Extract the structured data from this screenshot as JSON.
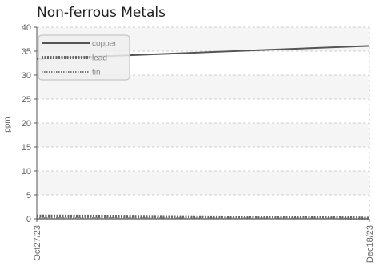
{
  "chart_data": {
    "type": "line",
    "title": "Non-ferrous Metals",
    "xlabel": "",
    "ylabel": "ppm",
    "x": [
      "Oct27/23",
      "Dec18/23"
    ],
    "xlim": [
      0,
      52
    ],
    "ylim": [
      0,
      40
    ],
    "yticks": [
      0,
      5,
      10,
      15,
      20,
      25,
      30,
      35,
      40
    ],
    "grid": true,
    "legend_position": "top-left",
    "series": [
      {
        "name": "copper",
        "style": "solid",
        "points": [
          [
            0,
            33.4
          ],
          [
            52,
            36.1
          ]
        ]
      },
      {
        "name": "lead",
        "style": "dotted-thick",
        "points": [
          [
            0,
            0.55
          ],
          [
            12,
            0.5
          ],
          [
            28,
            0.35
          ],
          [
            46,
            0.25
          ],
          [
            52,
            0.1
          ]
        ]
      },
      {
        "name": "tin",
        "style": "dotted-thin",
        "points": [
          [
            0,
            0.15
          ],
          [
            20,
            0.1
          ],
          [
            52,
            0.05
          ]
        ]
      }
    ],
    "colors": {
      "copper": "#555555",
      "lead": "#666666",
      "tin": "#777777",
      "grid": "#cccccc",
      "band": "#f5f5f5"
    }
  }
}
